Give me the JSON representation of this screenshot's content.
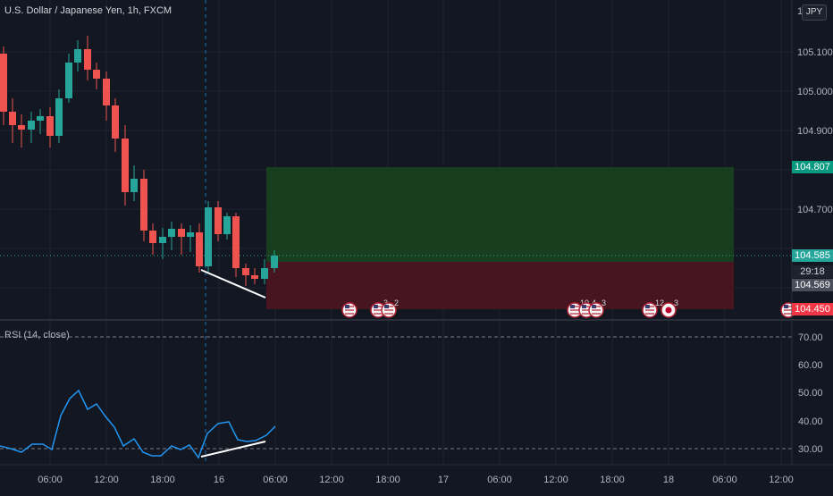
{
  "header": {
    "title": "U.S. Dollar / Japanese Yen, 1h, FXCM",
    "currency_button": "JPY"
  },
  "rsi": {
    "title": "RSI (14, close)",
    "levels": [
      70,
      30
    ]
  },
  "tags": {
    "take_profit": "104.807",
    "last_price": "104.585",
    "countdown": "29:18",
    "entry": "104.569",
    "stop_loss": "104.450"
  },
  "price_axis": {
    "labels": [
      "105.100",
      "105.000",
      "104.900",
      "104.700"
    ]
  },
  "rsi_axis": {
    "labels": [
      "70.00",
      "60.00",
      "50.00",
      "40.00",
      "30.00"
    ]
  },
  "time_axis": {
    "labels": [
      "06:00",
      "12:00",
      "18:00",
      "16",
      "06:00",
      "12:00",
      "18:00",
      "17",
      "06:00",
      "12:00",
      "18:00",
      "18",
      "06:00",
      "12:00"
    ]
  },
  "event_badges": [
    {
      "label": "",
      "icon": "us-flag-icon"
    },
    {
      "label": "3",
      "icon": "us-flag-icon"
    },
    {
      "label": "2",
      "icon": "us-flag-icon"
    },
    {
      "label": "10",
      "icon": "us-flag-icon"
    },
    {
      "label": "4",
      "icon": "us-flag-icon"
    },
    {
      "label": "3",
      "icon": "us-flag-icon"
    },
    {
      "label": "12",
      "icon": "us-flag-icon"
    },
    {
      "label": "3",
      "icon": "jp-flag-icon"
    },
    {
      "label": "",
      "icon": "us-flag-icon"
    }
  ],
  "colors": {
    "up": "#26a69a",
    "down": "#ef5350",
    "rsi_line": "#2196f3",
    "profit_zone": "#17401f",
    "loss_zone": "#4a1520",
    "background": "#131722"
  }
}
